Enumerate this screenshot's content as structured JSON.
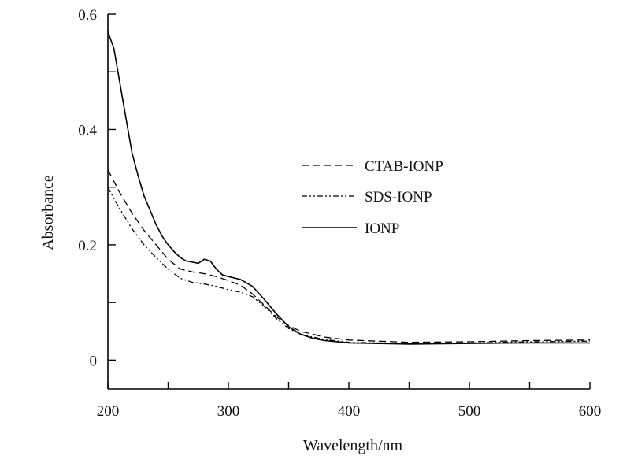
{
  "chart_data": {
    "type": "line",
    "title": "",
    "xlabel": "Wavelength/nm",
    "ylabel": "Absorbance",
    "xlim": [
      200,
      600
    ],
    "ylim": [
      -0.05,
      0.6
    ],
    "x_ticks": [
      200,
      300,
      400,
      500,
      600
    ],
    "x_minor_ticks": [
      250,
      350,
      450,
      550
    ],
    "y_ticks": [
      0,
      0.2,
      0.4,
      0.6
    ],
    "y_minor_ticks": [
      0.1,
      0.3,
      0.5
    ],
    "grid": false,
    "legend_position": "upper-center-right",
    "series": [
      {
        "name": "CTAB-IONP",
        "style": "dashed",
        "x": [
          200,
          205,
          210,
          220,
          230,
          240,
          250,
          260,
          270,
          280,
          290,
          300,
          310,
          320,
          330,
          340,
          350,
          360,
          370,
          380,
          400,
          450,
          500,
          550,
          600
        ],
        "y": [
          0.33,
          0.31,
          0.29,
          0.255,
          0.225,
          0.2,
          0.175,
          0.158,
          0.153,
          0.15,
          0.145,
          0.138,
          0.13,
          0.115,
          0.095,
          0.075,
          0.06,
          0.05,
          0.045,
          0.04,
          0.035,
          0.031,
          0.032,
          0.034,
          0.035
        ]
      },
      {
        "name": "SDS-IONP",
        "style": "dash-dot-dot",
        "x": [
          200,
          205,
          210,
          220,
          230,
          240,
          250,
          260,
          270,
          280,
          290,
          300,
          310,
          320,
          330,
          340,
          350,
          360,
          370,
          380,
          400,
          450,
          500,
          550,
          600
        ],
        "y": [
          0.3,
          0.28,
          0.262,
          0.228,
          0.2,
          0.178,
          0.158,
          0.142,
          0.135,
          0.132,
          0.128,
          0.122,
          0.118,
          0.11,
          0.093,
          0.072,
          0.055,
          0.045,
          0.04,
          0.036,
          0.031,
          0.029,
          0.03,
          0.032,
          0.033
        ]
      },
      {
        "name": "IONP",
        "style": "solid",
        "x": [
          200,
          205,
          210,
          215,
          220,
          225,
          230,
          235,
          240,
          245,
          250,
          255,
          260,
          265,
          270,
          275,
          280,
          285,
          290,
          295,
          300,
          310,
          320,
          330,
          340,
          350,
          360,
          370,
          380,
          400,
          450,
          500,
          550,
          600
        ],
        "y": [
          0.57,
          0.54,
          0.48,
          0.42,
          0.36,
          0.32,
          0.285,
          0.26,
          0.235,
          0.215,
          0.2,
          0.188,
          0.178,
          0.172,
          0.17,
          0.168,
          0.175,
          0.172,
          0.158,
          0.148,
          0.145,
          0.14,
          0.128,
          0.105,
          0.08,
          0.058,
          0.045,
          0.038,
          0.034,
          0.03,
          0.028,
          0.029,
          0.03,
          0.03
        ]
      }
    ]
  }
}
